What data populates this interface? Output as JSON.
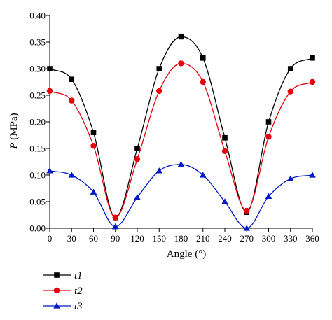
{
  "chart_data": {
    "type": "line",
    "xlabel": "Angle (°)",
    "ylabel_italic": "P",
    "ylabel_rest": " (MPa)",
    "x": [
      0,
      30,
      60,
      90,
      120,
      150,
      180,
      210,
      240,
      270,
      300,
      330,
      360
    ],
    "xlim": [
      0,
      360
    ],
    "ylim": [
      0,
      0.4
    ],
    "xticks": [
      "0",
      "30",
      "60",
      "90",
      "120",
      "150",
      "180",
      "210",
      "240",
      "270",
      "300",
      "330",
      "360"
    ],
    "yticks": [
      "0.00",
      "0.05",
      "0.10",
      "0.15",
      "0.20",
      "0.25",
      "0.30",
      "0.35",
      "0.40"
    ],
    "grid": false,
    "legend_position": "bottom-left",
    "series": [
      {
        "name": "t1",
        "color": "#000000",
        "marker": "square",
        "values": [
          0.3,
          0.28,
          0.18,
          0.02,
          0.15,
          0.3,
          0.36,
          0.32,
          0.17,
          0.03,
          0.2,
          0.3,
          0.32
        ]
      },
      {
        "name": "t2",
        "color": "#e8000b",
        "marker": "circle",
        "values": [
          0.258,
          0.24,
          0.155,
          0.02,
          0.13,
          0.258,
          0.31,
          0.275,
          0.145,
          0.033,
          0.172,
          0.257,
          0.275
        ]
      },
      {
        "name": "t3",
        "color": "#0018c8",
        "marker": "triangle",
        "values": [
          0.108,
          0.1,
          0.068,
          0.003,
          0.058,
          0.108,
          0.12,
          0.1,
          0.05,
          0.0,
          0.06,
          0.093,
          0.1
        ]
      }
    ]
  }
}
